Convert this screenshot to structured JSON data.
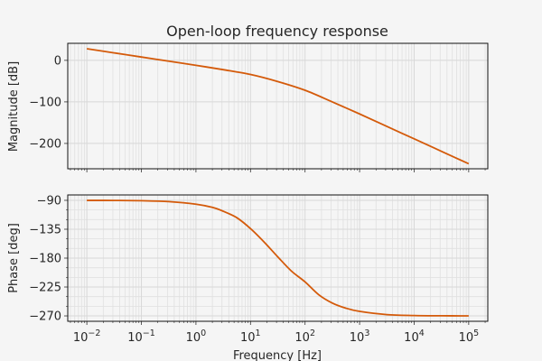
{
  "chart_data": [
    {
      "type": "line",
      "title": "Open-loop frequency response",
      "xlabel": "",
      "ylabel": "Magnitude [dB]",
      "xscale": "log",
      "xlim_log10": [
        -2.35,
        5.35
      ],
      "ylim": [
        -261,
        41
      ],
      "yticks": [
        0,
        -100,
        -200
      ],
      "ytick_labels": [
        "0",
        "−100",
        "−200"
      ],
      "grid": true,
      "series": [
        {
          "name": "magnitude",
          "color": "#d45a0a",
          "x": [
            0.01,
            0.0316,
            0.1,
            0.316,
            1,
            3.16,
            10,
            31.6,
            100,
            316,
            1000,
            3162,
            10000,
            31623,
            100000
          ],
          "y": [
            28,
            18,
            8,
            -2,
            -12,
            -22.4,
            -34,
            -51,
            -72,
            -100,
            -129,
            -159,
            -189,
            -219,
            -249
          ]
        }
      ]
    },
    {
      "type": "line",
      "title": "",
      "xlabel": "Frequency [Hz]",
      "ylabel": "Phase [deg]",
      "xscale": "log",
      "xlim_log10": [
        -2.35,
        5.35
      ],
      "xtick_labels": [
        {
          "base": "10",
          "exp": "−2"
        },
        {
          "base": "10",
          "exp": "−1"
        },
        {
          "base": "10",
          "exp": "0"
        },
        {
          "base": "10",
          "exp": "1"
        },
        {
          "base": "10",
          "exp": "2"
        },
        {
          "base": "10",
          "exp": "3"
        },
        {
          "base": "10",
          "exp": "4"
        },
        {
          "base": "10",
          "exp": "5"
        }
      ],
      "ylim": [
        -278.4,
        -81.6
      ],
      "yticks": [
        -90,
        -135,
        -180,
        -225,
        -270
      ],
      "ytick_labels": [
        "−90",
        "−135",
        "−180",
        "−225",
        "−270"
      ],
      "grid": true,
      "series": [
        {
          "name": "phase",
          "color": "#d45a0a",
          "x": [
            0.01,
            0.0316,
            0.1,
            0.316,
            1,
            2,
            3.16,
            5.6,
            10,
            17.8,
            31.6,
            56,
            100,
            178,
            316,
            562,
            1000,
            3162,
            10000,
            31623,
            100000
          ],
          "y": [
            -90.1,
            -90.2,
            -90.6,
            -92,
            -96,
            -101,
            -107,
            -117,
            -134,
            -155,
            -178,
            -200,
            -217,
            -237,
            -250,
            -258,
            -263,
            -268,
            -269.4,
            -269.8,
            -270
          ]
        }
      ]
    }
  ]
}
